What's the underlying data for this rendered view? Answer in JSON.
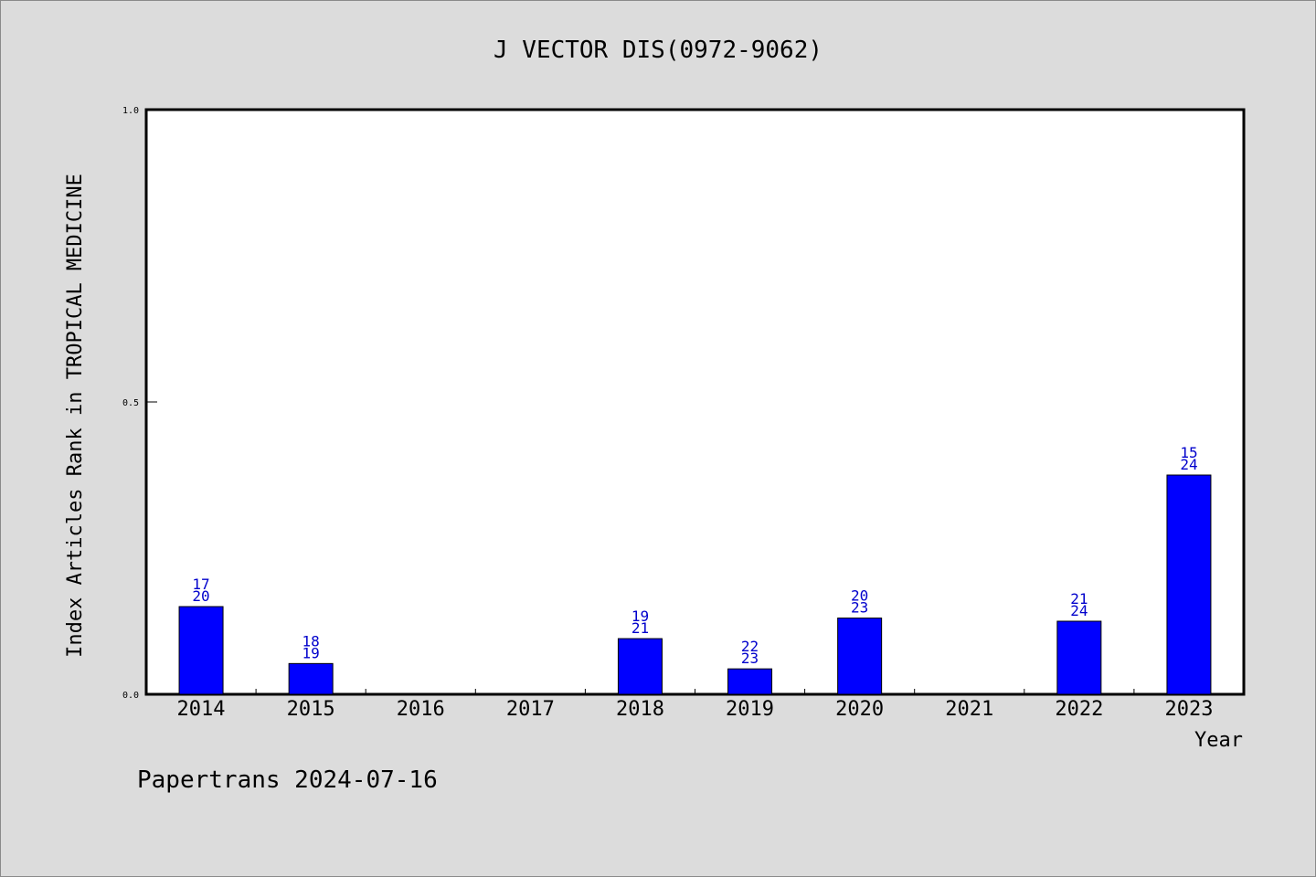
{
  "chart_data": {
    "type": "bar",
    "title": "J VECTOR DIS(0972-9062)",
    "xlabel": "Year",
    "ylabel": "Index Articles Rank in TROPICAL MEDICINE",
    "ylim": [
      0,
      1.0
    ],
    "yticks": [
      "0.0",
      "0.5",
      "1.0"
    ],
    "yticks_values": [
      0,
      0.5,
      1.0
    ],
    "categories": [
      "2014",
      "2015",
      "2016",
      "2017",
      "2018",
      "2019",
      "2020",
      "2021",
      "2022",
      "2023"
    ],
    "values": [
      0.15,
      0.0526,
      null,
      null,
      0.0952,
      0.0435,
      0.1304,
      null,
      0.125,
      0.375
    ],
    "rank_labels": [
      {
        "rank": "17",
        "total": "20"
      },
      {
        "rank": "18",
        "total": "19"
      },
      null,
      null,
      {
        "rank": "19",
        "total": "21"
      },
      {
        "rank": "22",
        "total": "23"
      },
      {
        "rank": "20",
        "total": "23"
      },
      null,
      {
        "rank": "21",
        "total": "24"
      },
      {
        "rank": "15",
        "total": "24"
      }
    ],
    "bar_color": "#0000ff",
    "grid": false,
    "legend": "none"
  },
  "footer": "Papertrans 2024-07-16"
}
